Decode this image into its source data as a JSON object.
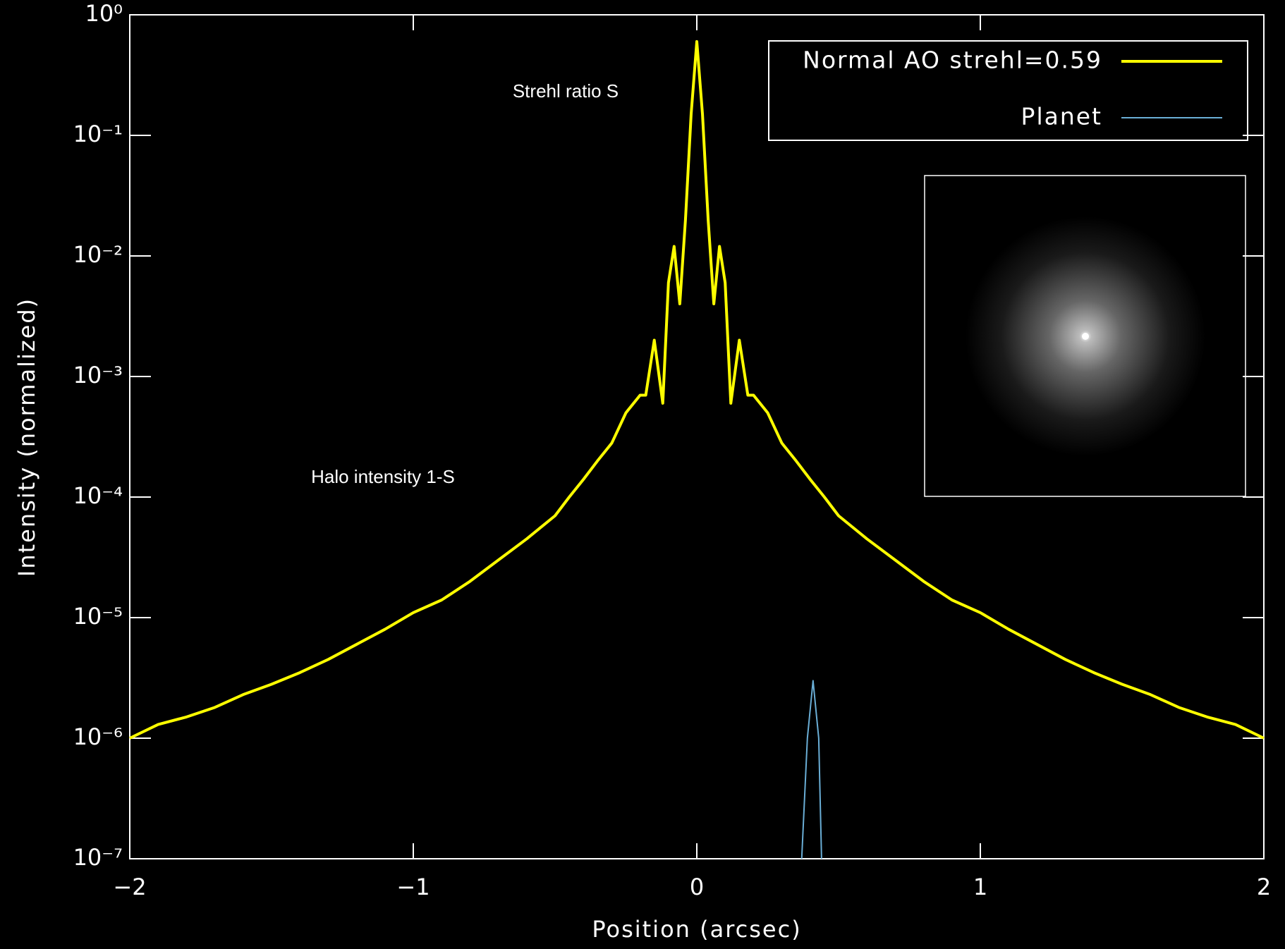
{
  "chart_data": {
    "type": "line",
    "xlabel": "Position (arcsec)",
    "ylabel": "Intensity (normalized)",
    "log_y": true,
    "legend": "upper right",
    "annotations": [
      "Strehl ratio S",
      "Halo intensity 1-S"
    ],
    "xlim": [
      -2,
      2
    ],
    "ylim": [
      1e-07,
      1
    ],
    "xticks": [
      {
        "value": -2,
        "label": "−2"
      },
      {
        "value": -1,
        "label": "−1"
      },
      0,
      1,
      2
    ],
    "yticks": [
      {
        "value": 1e-07,
        "label": "10⁻⁷"
      },
      {
        "value": 1e-06,
        "label": "10⁻⁶"
      },
      {
        "value": 1e-05,
        "label": "10⁻⁵"
      },
      {
        "value": 0.0001,
        "label": "10⁻⁴"
      },
      {
        "value": 0.001,
        "label": "10⁻³"
      },
      {
        "value": 0.01,
        "label": "10⁻²"
      },
      {
        "value": 0.1,
        "label": "10⁻¹"
      },
      {
        "value": 1,
        "label": "10⁰"
      }
    ],
    "series": [
      {
        "name": "Normal AO strehl=0.59",
        "color": "#ffff00",
        "x": [
          -2.0,
          -1.9,
          -1.8,
          -1.7,
          -1.6,
          -1.5,
          -1.4,
          -1.3,
          -1.2,
          -1.1,
          -1.0,
          -0.9,
          -0.8,
          -0.7,
          -0.6,
          -0.5,
          -0.45,
          -0.4,
          -0.35,
          -0.3,
          -0.25,
          -0.2,
          -0.18,
          -0.15,
          -0.12,
          -0.1,
          -0.08,
          -0.06,
          -0.04,
          -0.02,
          0,
          0.02,
          0.04,
          0.06,
          0.08,
          0.1,
          0.12,
          0.15,
          0.18,
          0.2,
          0.25,
          0.3,
          0.35,
          0.4,
          0.45,
          0.5,
          0.6,
          0.7,
          0.8,
          0.9,
          1.0,
          1.1,
          1.2,
          1.3,
          1.4,
          1.5,
          1.6,
          1.7,
          1.8,
          1.9,
          2.0
        ],
        "values": [
          1e-06,
          1.3e-06,
          1.5e-06,
          1.8e-06,
          2.3e-06,
          2.8e-06,
          3.5e-06,
          4.5e-06,
          6e-06,
          8e-06,
          1.1e-05,
          1.4e-05,
          2e-05,
          3e-05,
          4.5e-05,
          7e-05,
          0.0001,
          0.00014,
          0.0002,
          0.00028,
          0.0005,
          0.0007,
          0.0007,
          0.002,
          0.0006,
          0.006,
          0.012,
          0.004,
          0.02,
          0.15,
          0.6,
          0.15,
          0.02,
          0.004,
          0.012,
          0.006,
          0.0006,
          0.002,
          0.0007,
          0.0007,
          0.0005,
          0.00028,
          0.0002,
          0.00014,
          0.0001,
          7e-05,
          4.5e-05,
          3e-05,
          2e-05,
          1.4e-05,
          1.1e-05,
          8e-06,
          6e-06,
          4.5e-06,
          3.5e-06,
          2.8e-06,
          2.3e-06,
          1.8e-06,
          1.5e-06,
          1.3e-06,
          1e-06
        ]
      },
      {
        "name": "Planet",
        "color": "#6aaed6",
        "x": [
          0.37,
          0.39,
          0.41,
          0.43,
          0.44
        ],
        "values": [
          1e-07,
          1e-06,
          3e-06,
          1e-06,
          1e-07
        ]
      }
    ]
  }
}
